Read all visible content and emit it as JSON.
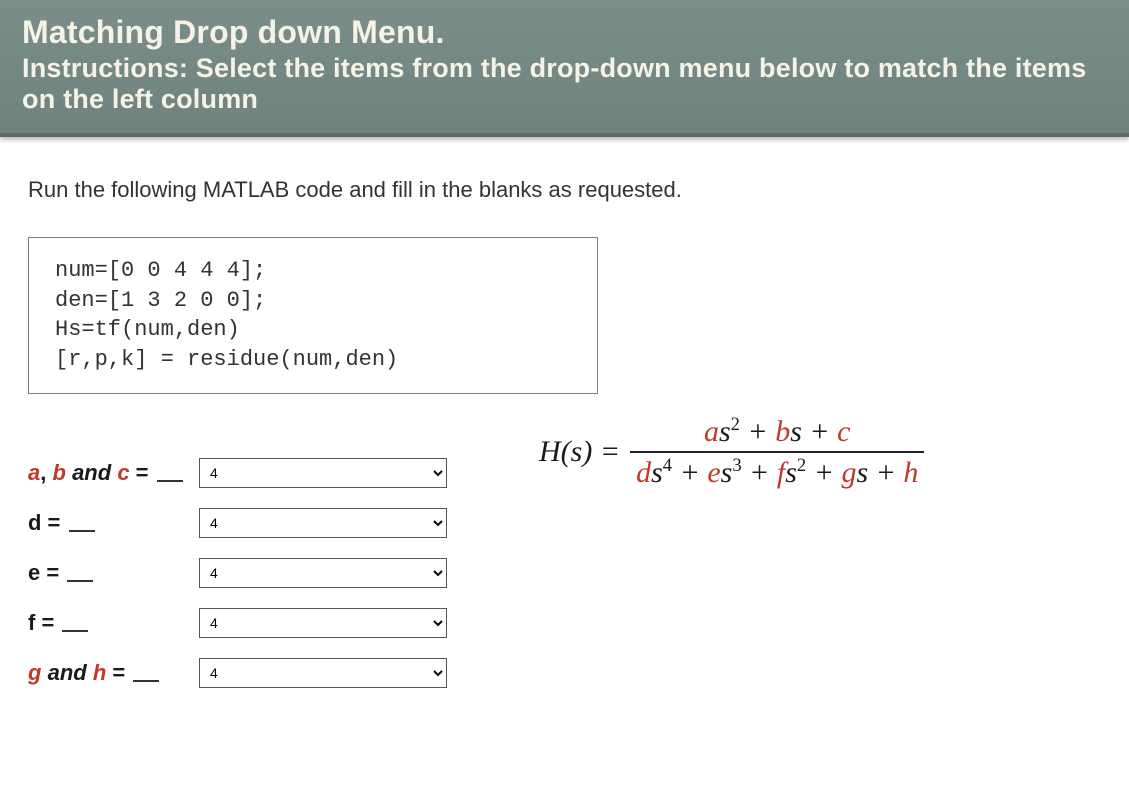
{
  "header": {
    "title": "Matching Drop down Menu.",
    "instructions": "Instructions: Select the items from the drop-down menu below to match the items on the left column"
  },
  "prompt": "Run the following MATLAB code and fill in the blanks as requested.",
  "code": "num=[0 0 4 4 4];\nden=[1 3 2 0 0];\nHs=tf(num,den)\n[r,p,k] = residue(num,den)",
  "rows": [
    {
      "label_html": "<span class=\"varred\">a</span>, <span class=\"varred\">b</span> <span class=\"italic\">and</span> <span class=\"varred\">c</span> = <span class=\"blank\"></span>",
      "value": "4"
    },
    {
      "label_html": "d = <span class=\"blank\"></span>",
      "value": "4"
    },
    {
      "label_html": "e = <span class=\"blank\"></span>",
      "value": "4"
    },
    {
      "label_html": "f = <span class=\"blank\"></span>",
      "value": "4"
    },
    {
      "label_html": "<span class=\"varred\">g</span> <span class=\"italic\">and</span> <span class=\"varred\">h</span> = <span class=\"blank\"></span>",
      "value": "4"
    }
  ],
  "select_options": [
    "4"
  ],
  "equation": {
    "lhs": "H(s) =",
    "numerator_html": "<span class=\"vr\">a</span>s<sup>2</sup> + <span class=\"vr\">b</span>s + <span class=\"vr\">c</span>",
    "denominator_html": "<span class=\"vr\">d</span>s<sup>4</sup> + <span class=\"vr\">e</span>s<sup>3</sup> + <span class=\"vr\">f</span>s<sup>2</sup> + <span class=\"vr\">g</span>s + <span class=\"vr\">h</span>"
  },
  "colors": {
    "header_bg_top": "#7b8e8a",
    "header_bg_bottom": "#6f827e",
    "header_text": "#f5f3e6",
    "var_red": "#c0392b",
    "body_text": "#333333",
    "border_gray": "#808080"
  },
  "typography": {
    "header_title_fontsize": 32,
    "header_subtitle_fontsize": 27,
    "prompt_fontsize": 22,
    "code_fontsize": 22,
    "label_fontsize": 22,
    "equation_fontsize": 30
  }
}
